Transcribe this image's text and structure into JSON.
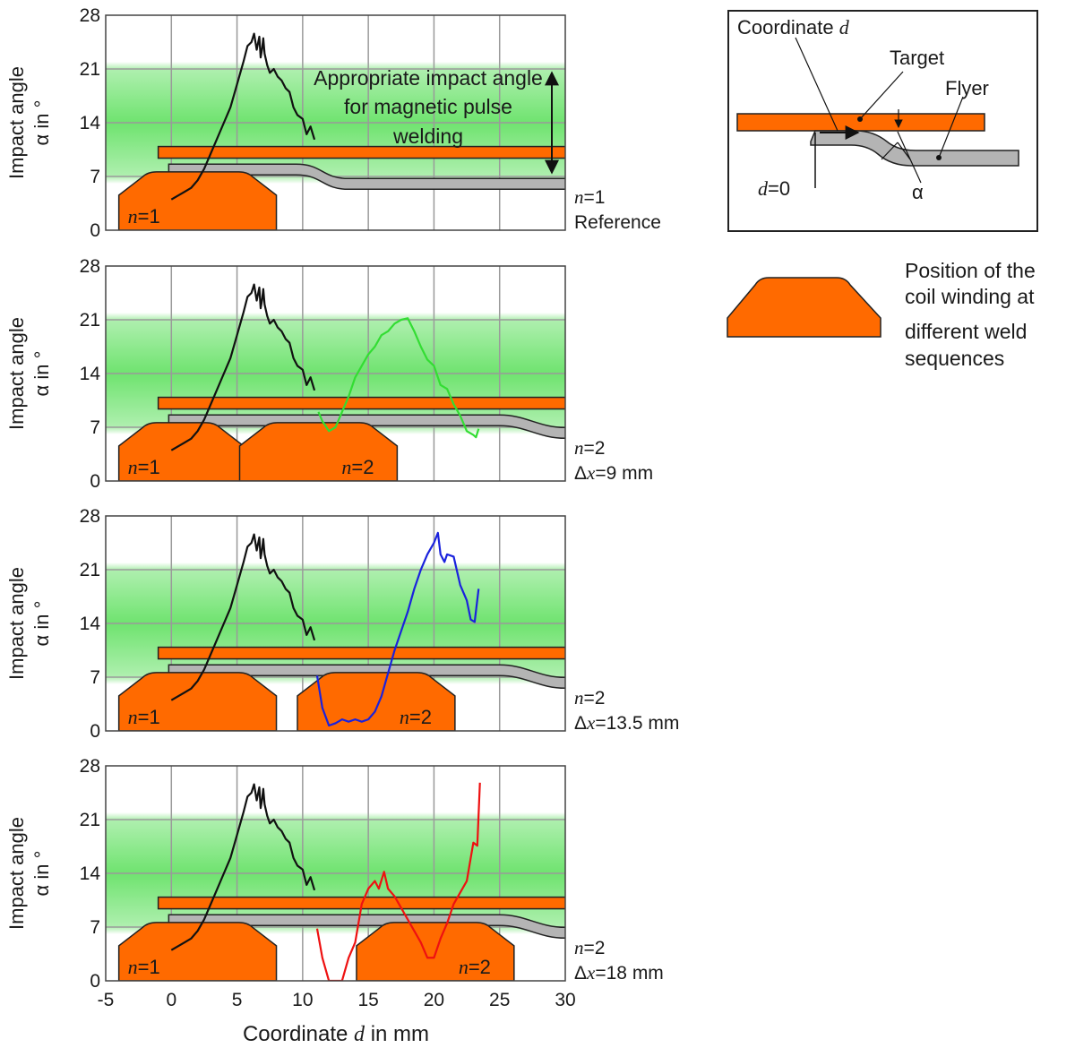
{
  "colors": {
    "band": "#5fe05f",
    "target": "#ff6a00",
    "coil": "#ff6a00",
    "flyer": "#b4b4b4",
    "grid": "#9a9a9a",
    "reference": "#111111"
  },
  "chart_data": [
    {
      "type": "line",
      "ylabel": "Impact angle α in °",
      "xlim": [
        -5,
        30
      ],
      "ylim": [
        0,
        28
      ],
      "yticks": [
        "0",
        "7",
        "14",
        "21",
        "28"
      ],
      "band": [
        7,
        21
      ],
      "band_label": "Appropriate impact angle for magnetic pulse welding",
      "side_label": [
        "n=1",
        "Reference"
      ],
      "coils": [
        {
          "label": "n=1",
          "from": -4,
          "to": 8
        }
      ],
      "series": [
        {
          "color": "#111111",
          "x": [
            0,
            0.5,
            1,
            1.5,
            2,
            2.5,
            3,
            3.5,
            4,
            4.5,
            5,
            5.5,
            5.8,
            6.1,
            6.3,
            6.5,
            6.7,
            6.8,
            6.9,
            7.0,
            7.1,
            7.3,
            7.5,
            7.8,
            8.1,
            8.4,
            8.7,
            9.0,
            9.3,
            9.6,
            10,
            10.3,
            10.6,
            10.9
          ],
          "y": [
            4,
            4.5,
            5,
            5.5,
            6.5,
            8,
            10,
            12,
            14,
            16,
            19,
            22,
            24,
            24.5,
            25.6,
            23.5,
            25.2,
            22.5,
            23.5,
            25,
            23,
            21.5,
            20.5,
            21,
            20,
            19.5,
            18.5,
            18,
            16,
            15,
            14.5,
            12.5,
            13.5,
            11.8
          ]
        }
      ]
    },
    {
      "type": "line",
      "ylabel": "Impact angle α in °",
      "xlim": [
        -5,
        30
      ],
      "ylim": [
        0,
        28
      ],
      "yticks": [
        "0",
        "7",
        "14",
        "21",
        "28"
      ],
      "band": [
        7,
        21
      ],
      "side_label": [
        "n=2",
        "Δx=9 mm"
      ],
      "coils": [
        {
          "label": "n=1",
          "from": -4,
          "to": 5.5
        },
        {
          "label": "n=2",
          "from": 5.2,
          "to": 17.2
        }
      ],
      "series": [
        {
          "color": "#111111",
          "x": [
            0,
            0.5,
            1,
            1.5,
            2,
            2.5,
            3,
            3.5,
            4,
            4.5,
            5,
            5.5,
            5.8,
            6.1,
            6.3,
            6.5,
            6.7,
            6.8,
            6.9,
            7.0,
            7.1,
            7.3,
            7.5,
            7.8,
            8.1,
            8.4,
            8.7,
            9.0,
            9.3,
            9.6,
            10,
            10.3,
            10.6,
            10.9
          ],
          "y": [
            4,
            4.5,
            5,
            5.5,
            6.5,
            8,
            10,
            12,
            14,
            16,
            19,
            22,
            24,
            24.5,
            25.6,
            23.5,
            25.2,
            22.5,
            23.5,
            25,
            23,
            21.5,
            20.5,
            21,
            20,
            19.5,
            18.5,
            18,
            16,
            15,
            14.5,
            12.5,
            13.5,
            11.8
          ]
        },
        {
          "color": "#33dd33",
          "x": [
            11.2,
            11.5,
            12,
            12.5,
            13,
            13.5,
            14,
            14.5,
            15,
            15.5,
            16,
            16.5,
            17,
            17.5,
            18,
            18.5,
            19,
            19.5,
            20,
            20.5,
            21,
            21.5,
            22,
            22.5,
            23,
            23.2,
            23.4
          ],
          "y": [
            9,
            7.8,
            6.5,
            7,
            9,
            11,
            13.5,
            15,
            16.5,
            17.5,
            19,
            19.5,
            20.5,
            21,
            21.2,
            19.5,
            17.5,
            15.8,
            15,
            12.5,
            12,
            10,
            8.5,
            6.5,
            6,
            5.7,
            6.8
          ]
        }
      ]
    },
    {
      "type": "line",
      "ylabel": "Impact angle α in °",
      "xlim": [
        -5,
        30
      ],
      "ylim": [
        0,
        28
      ],
      "yticks": [
        "0",
        "7",
        "14",
        "21",
        "28"
      ],
      "band": [
        7,
        21
      ],
      "side_label": [
        "n=2",
        "Δx=13.5 mm"
      ],
      "coils": [
        {
          "label": "n=1",
          "from": -4,
          "to": 8
        },
        {
          "label": "n=2",
          "from": 9.6,
          "to": 21.6
        }
      ],
      "series": [
        {
          "color": "#111111",
          "x": [
            0,
            0.5,
            1,
            1.5,
            2,
            2.5,
            3,
            3.5,
            4,
            4.5,
            5,
            5.5,
            5.8,
            6.1,
            6.3,
            6.5,
            6.7,
            6.8,
            6.9,
            7.0,
            7.1,
            7.3,
            7.5,
            7.8,
            8.1,
            8.4,
            8.7,
            9.0,
            9.3,
            9.6,
            10,
            10.3,
            10.6,
            10.9
          ],
          "y": [
            4,
            4.5,
            5,
            5.5,
            6.5,
            8,
            10,
            12,
            14,
            16,
            19,
            22,
            24,
            24.5,
            25.6,
            23.5,
            25.2,
            22.5,
            23.5,
            25,
            23,
            21.5,
            20.5,
            21,
            20,
            19.5,
            18.5,
            18,
            16,
            15,
            14.5,
            12.5,
            13.5,
            11.8
          ]
        },
        {
          "color": "#1a22dd",
          "x": [
            11.1,
            11.5,
            12,
            12.5,
            13,
            13.5,
            14,
            14.5,
            15,
            15.5,
            16,
            16.5,
            17,
            17.5,
            18,
            18.5,
            19,
            19.5,
            20,
            20.3,
            20.5,
            20.8,
            21,
            21.5,
            22,
            22.5,
            22.8,
            23.1,
            23.4
          ],
          "y": [
            7.2,
            3,
            0.7,
            1,
            1.5,
            1.2,
            1.5,
            1.2,
            1.5,
            2.5,
            4.5,
            7.5,
            10.5,
            13,
            15.5,
            18.5,
            21,
            23,
            24.5,
            25.8,
            23,
            22,
            23,
            22.7,
            19,
            17,
            14.5,
            14.2,
            18.5
          ]
        }
      ]
    },
    {
      "type": "line",
      "ylabel": "Impact angle α in °",
      "xlim": [
        -5,
        30
      ],
      "ylim": [
        0,
        28
      ],
      "yticks": [
        "0",
        "7",
        "14",
        "21",
        "28"
      ],
      "band": [
        7,
        21
      ],
      "side_label": [
        "n=2",
        "Δx=18 mm"
      ],
      "xlabel": "Coordinate d in mm",
      "xticks": [
        "-5",
        "0",
        "5",
        "10",
        "15",
        "20",
        "25",
        "30"
      ],
      "coils": [
        {
          "label": "n=1",
          "from": -4,
          "to": 8
        },
        {
          "label": "n=2",
          "from": 14.1,
          "to": 26.1
        }
      ],
      "series": [
        {
          "color": "#111111",
          "x": [
            0,
            0.5,
            1,
            1.5,
            2,
            2.5,
            3,
            3.5,
            4,
            4.5,
            5,
            5.5,
            5.8,
            6.1,
            6.3,
            6.5,
            6.7,
            6.8,
            6.9,
            7.0,
            7.1,
            7.3,
            7.5,
            7.8,
            8.1,
            8.4,
            8.7,
            9.0,
            9.3,
            9.6,
            10,
            10.3,
            10.6,
            10.9
          ],
          "y": [
            4,
            4.5,
            5,
            5.5,
            6.5,
            8,
            10,
            12,
            14,
            16,
            19,
            22,
            24,
            24.5,
            25.6,
            23.5,
            25.2,
            22.5,
            23.5,
            25,
            23,
            21.5,
            20.5,
            21,
            20,
            19.5,
            18.5,
            18,
            16,
            15,
            14.5,
            12.5,
            13.5,
            11.8
          ]
        },
        {
          "color": "#ee1111",
          "x": [
            11.1,
            11.5,
            12,
            12.5,
            13,
            13.5,
            14,
            14.5,
            15,
            15.5,
            15.8,
            16.2,
            16.5,
            17,
            17.5,
            18,
            18.5,
            19,
            19.5,
            20,
            20.5,
            21,
            21.5,
            22,
            22.5,
            23,
            23.3,
            23.5
          ],
          "y": [
            6.8,
            3,
            0,
            0,
            0,
            3,
            5,
            10,
            12,
            13,
            12,
            14.2,
            12,
            11,
            9.5,
            8,
            6.5,
            5,
            3,
            3,
            5.5,
            7.5,
            10,
            11.5,
            13,
            18,
            17.6,
            25.8
          ]
        }
      ]
    }
  ],
  "legend": {
    "coil_text": [
      "Position of the",
      "coil winding at",
      "different weld",
      "sequences"
    ]
  },
  "inset": {
    "coordinate_label": "Coordinate d",
    "target_label": "Target",
    "flyer_label": "Flyer",
    "d0_label": "d=0",
    "alpha_label": "α"
  }
}
